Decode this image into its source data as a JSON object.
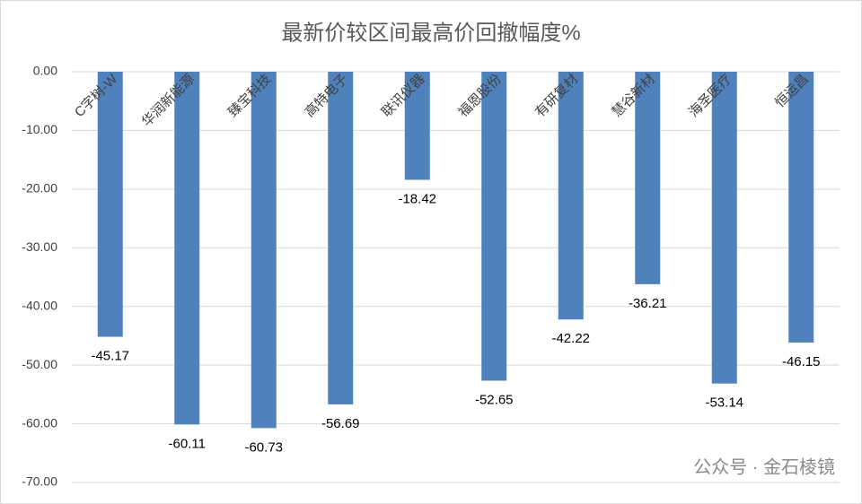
{
  "chart_data": {
    "type": "bar",
    "title": "最新价较区间最高价回撤幅度%",
    "categories": [
      "C字树-W",
      "华润新能源",
      "臻宝科技",
      "高特电子",
      "联讯仪器",
      "福恩股份",
      "有研复材",
      "慧谷新材",
      "海圣医疗",
      "恒运昌"
    ],
    "values": [
      -45.17,
      -60.11,
      -60.73,
      -56.69,
      -18.42,
      -52.65,
      -42.22,
      -36.21,
      -53.14,
      -46.15
    ],
    "color": "#4f81bd",
    "ylim": [
      -70,
      0
    ],
    "yticks": [
      {
        "value": 0,
        "label": "0.00"
      },
      {
        "value": -10,
        "label": "-10.00"
      },
      {
        "value": -20,
        "label": "-20.00"
      },
      {
        "value": -30,
        "label": "-30.00"
      },
      {
        "value": -40,
        "label": "-40.00"
      },
      {
        "value": -50,
        "label": "-50.00"
      },
      {
        "value": -60,
        "label": "-60.00"
      },
      {
        "value": -70,
        "label": "-70.00"
      }
    ],
    "grid": true,
    "watermark": "公众号 · 金石棱镜"
  }
}
